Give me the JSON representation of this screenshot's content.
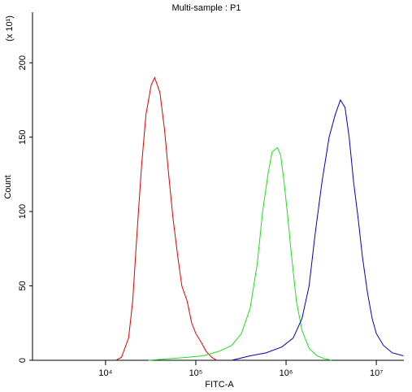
{
  "chart_data": {
    "type": "line",
    "title": "Multi-sample : P1",
    "xlabel": "FITC-A",
    "ylabel": "Count",
    "multiplier": "(x 10¹)",
    "xscale": "log",
    "xlim": [
      1550,
      20200000
    ],
    "ylim": [
      0,
      234
    ],
    "xticks": [
      {
        "value": 10000,
        "label": "10⁴"
      },
      {
        "value": 100000,
        "label": "10⁵"
      },
      {
        "value": 1000000,
        "label": "10⁶"
      },
      {
        "value": 10000000,
        "label": "10⁷"
      }
    ],
    "yticks": [
      0,
      50,
      100,
      150,
      200
    ],
    "series": [
      {
        "color": "#e00000",
        "x": [
          13000,
          15000,
          18000,
          20000,
          22000,
          25000,
          28000,
          32000,
          35000,
          40000,
          45000,
          50000,
          56000,
          63000,
          70000,
          80000,
          90000,
          100000,
          115000,
          130000,
          150000,
          170000
        ],
        "values": [
          0,
          2,
          15,
          40,
          80,
          130,
          165,
          185,
          190,
          180,
          155,
          125,
          95,
          70,
          50,
          40,
          25,
          18,
          12,
          6,
          2,
          0
        ]
      },
      {
        "color": "#22dd22",
        "x": [
          30000,
          50000,
          80000,
          120000,
          180000,
          250000,
          320000,
          400000,
          480000,
          550000,
          630000,
          700000,
          800000,
          870000,
          950000,
          1050000,
          1150000,
          1300000,
          1500000,
          1800000,
          2200000,
          2700000,
          3200000
        ],
        "values": [
          0,
          1,
          2,
          3,
          6,
          10,
          18,
          35,
          65,
          100,
          125,
          140,
          143,
          138,
          120,
          95,
          70,
          40,
          20,
          8,
          3,
          1,
          0
        ]
      },
      {
        "color": "#0000c0",
        "x": [
          250000,
          400000,
          600000,
          900000,
          1200000,
          1500000,
          1800000,
          2100000,
          2500000,
          3000000,
          3500000,
          4000000,
          4500000,
          5000000,
          5600000,
          6300000,
          7000000,
          8000000,
          9000000,
          10000000,
          12000000,
          15000000,
          20000000
        ],
        "values": [
          0,
          3,
          5,
          9,
          15,
          28,
          50,
          85,
          120,
          150,
          165,
          175,
          170,
          150,
          120,
          95,
          70,
          45,
          28,
          18,
          10,
          5,
          3
        ]
      }
    ]
  }
}
